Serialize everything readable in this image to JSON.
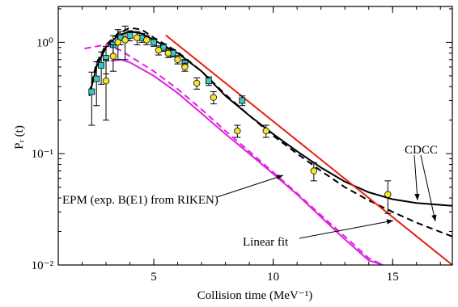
{
  "chart_data": {
    "type": "line",
    "xlabel": "Collision time (MeV⁻¹)",
    "ylabel": "Pᵣ (t)",
    "xlim": [
      1,
      17.5
    ],
    "xticks": [
      5,
      10,
      15
    ],
    "ylim": [
      0.01,
      2.1
    ],
    "log_y": true,
    "yticks": [
      {
        "value": 0.01,
        "label": "10⁻²"
      },
      {
        "value": 0.1,
        "label": "10⁻¹"
      },
      {
        "value": 1,
        "label": "10⁰"
      }
    ],
    "series": [
      {
        "name": "CDCC",
        "color": "#000000",
        "style": "solid",
        "x": [
          2.3,
          2.6,
          3.0,
          3.5,
          4.0,
          4.5,
          5.0,
          6.0,
          7.0,
          8.0,
          9.0,
          10.0,
          11.0,
          12.0,
          13.0,
          14.0,
          15.0,
          16.0,
          17.5
        ],
        "values": [
          0.33,
          0.6,
          0.9,
          1.15,
          1.25,
          1.2,
          1.05,
          0.8,
          0.55,
          0.33,
          0.22,
          0.15,
          0.105,
          0.075,
          0.056,
          0.045,
          0.039,
          0.036,
          0.034
        ]
      },
      {
        "color": "#000000",
        "style": "dashed",
        "x": [
          2.3,
          2.6,
          3.0,
          3.5,
          4.0,
          4.5,
          5.0,
          6.0,
          7.0,
          8.0,
          9.0,
          10.0,
          11.0,
          12.0,
          13.0,
          14.0,
          15.0,
          16.0,
          17.5
        ],
        "values": [
          0.35,
          0.65,
          0.95,
          1.2,
          1.35,
          1.3,
          1.1,
          0.82,
          0.55,
          0.34,
          0.22,
          0.145,
          0.1,
          0.07,
          0.05,
          0.038,
          0.03,
          0.024,
          0.018
        ]
      },
      {
        "name": "Linear fit",
        "color": "#e8200e",
        "style": "solid",
        "x": [
          5.5,
          17.5
        ],
        "values": [
          1.16,
          0.01
        ]
      },
      {
        "name": "EPM (exp. B(E1) from RIKEN)",
        "color": "#e020e0",
        "style": "solid",
        "x": [
          3.2,
          3.6,
          4.0,
          5.0,
          6.0,
          7.0,
          8.0,
          9.0,
          10.0,
          11.0,
          12.0,
          13.0,
          14.0,
          14.6
        ],
        "values": [
          0.68,
          0.7,
          0.66,
          0.5,
          0.35,
          0.23,
          0.15,
          0.1,
          0.066,
          0.043,
          0.027,
          0.017,
          0.011,
          0.01
        ]
      },
      {
        "color": "#e020e0",
        "style": "dashed",
        "x": [
          2.1,
          2.6,
          3.0,
          3.6,
          4.0,
          5.0,
          6.0,
          7.0,
          8.0,
          9.0,
          10.0,
          11.0,
          12.0,
          13.0,
          14.0,
          14.6
        ],
        "values": [
          0.88,
          0.92,
          0.95,
          0.85,
          0.75,
          0.55,
          0.38,
          0.25,
          0.16,
          0.105,
          0.068,
          0.044,
          0.028,
          0.018,
          0.0115,
          0.01
        ]
      },
      {
        "color": "#33cccc",
        "marker": "square",
        "x": [
          2.4,
          2.6,
          2.8,
          3.0,
          3.3,
          3.6,
          4.0,
          4.5,
          5.0,
          5.4,
          5.8,
          6.3,
          7.3,
          8.7
        ],
        "values": [
          0.36,
          0.47,
          0.62,
          0.72,
          0.95,
          1.1,
          1.15,
          1.1,
          1.0,
          0.9,
          0.8,
          0.65,
          0.45,
          0.3
        ],
        "yerr": [
          0.18,
          0.2,
          0.2,
          0.2,
          0.2,
          0.15,
          0.12,
          0.1,
          0.08,
          0.07,
          0.06,
          0.05,
          0.04,
          0.03
        ]
      },
      {
        "color": "#f5e52a",
        "marker": "circle",
        "x": [
          3.0,
          3.3,
          3.5,
          3.8,
          4.3,
          4.7,
          5.2,
          5.6,
          6.0,
          6.3,
          6.8,
          7.5,
          8.5,
          9.7,
          11.7,
          14.8
        ],
        "values": [
          0.45,
          0.75,
          1.0,
          1.05,
          1.1,
          1.05,
          0.85,
          0.8,
          0.7,
          0.6,
          0.43,
          0.32,
          0.16,
          0.16,
          0.07,
          0.043
        ],
        "yerr": [
          0.25,
          0.2,
          0.3,
          0.35,
          0.15,
          0.1,
          0.08,
          0.07,
          0.06,
          0.05,
          0.05,
          0.04,
          0.02,
          0.02,
          0.013,
          0.014
        ]
      }
    ]
  }
}
